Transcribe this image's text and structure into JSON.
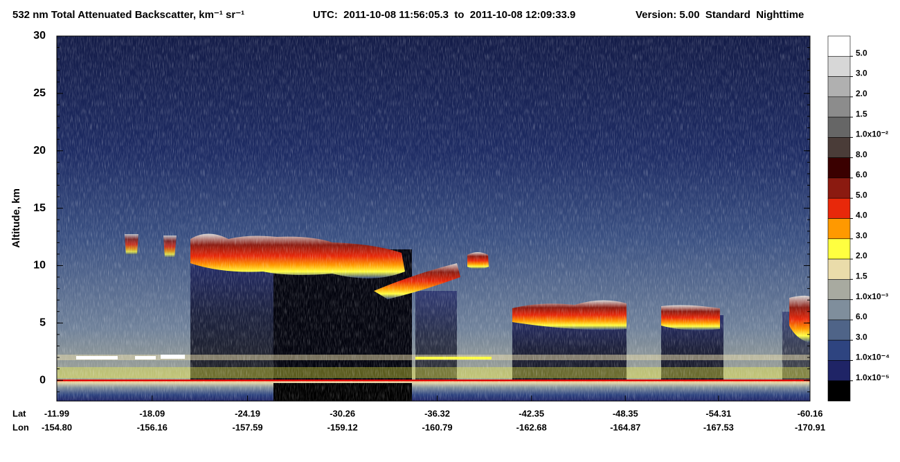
{
  "chart_data": {
    "type": "heatmap",
    "title": "532 nm Total Attenuated Backscatter, km⁻¹ sr⁻¹",
    "time_range": "UTC:  2011-10-08 11:56:05.3  to  2011-10-08 12:09:33.9",
    "version": "Version: 5.00  Standard  Nighttime",
    "y_label": "Altitude, km",
    "ylim": [
      -1.8,
      30
    ],
    "yticks": [
      0,
      5,
      10,
      15,
      20,
      25,
      30
    ],
    "lat_label": "Lat",
    "lon_label": "Lon",
    "xlim": [
      -11.99,
      -60.16
    ],
    "xticks": [
      -11.99,
      -18.09,
      -24.19,
      -30.26,
      -36.32,
      -42.35,
      -48.35,
      -54.31,
      -60.16
    ],
    "lon_ticks": [
      {
        "value": -154.8,
        "label": "-154.80"
      },
      -156.16,
      -157.59,
      -159.12,
      -160.79,
      -162.68,
      -164.87,
      -167.53,
      -170.91
    ],
    "colorbar_colors": [
      "#ffffff",
      "#d7d7d7",
      "#b0b0b0",
      "#8c8c8c",
      "#666666",
      "#4a3c38",
      "#3a0000",
      "#8b1a10",
      "#e8280a",
      "#ff9900",
      "#ffff40",
      "#eadcaa",
      "#a8aaa0",
      "#7f8e9c",
      "#4f6488",
      "#2e4480",
      "#1f2466",
      "#000000"
    ],
    "colorbar_levels": [
      {
        "value": 0.05,
        "label": "5.0"
      },
      {
        "value": 0.03,
        "label": "3.0"
      },
      {
        "value": 0.02,
        "label": "2.0"
      },
      {
        "value": 0.015,
        "label": "1.5"
      },
      {
        "value": 0.01,
        "label": "1.0x10⁻²"
      },
      {
        "value": 0.008,
        "label": "8.0"
      },
      {
        "value": 0.006,
        "label": "6.0"
      },
      {
        "value": 0.005,
        "label": "5.0"
      },
      {
        "value": 0.004,
        "label": "4.0"
      },
      {
        "value": 0.003,
        "label": "3.0"
      },
      {
        "value": 0.002,
        "label": "2.0"
      },
      {
        "value": 0.0015,
        "label": "1.5"
      },
      {
        "value": 0.001,
        "label": "1.0x10⁻³"
      },
      {
        "value": 0.0006,
        "label": "6.0"
      },
      {
        "value": 0.0003,
        "label": "3.0"
      },
      {
        "value": 0.0001,
        "label": "1.0x10⁻⁴"
      },
      {
        "value": 1e-05,
        "label": "1.0x10⁻⁵"
      }
    ]
  }
}
